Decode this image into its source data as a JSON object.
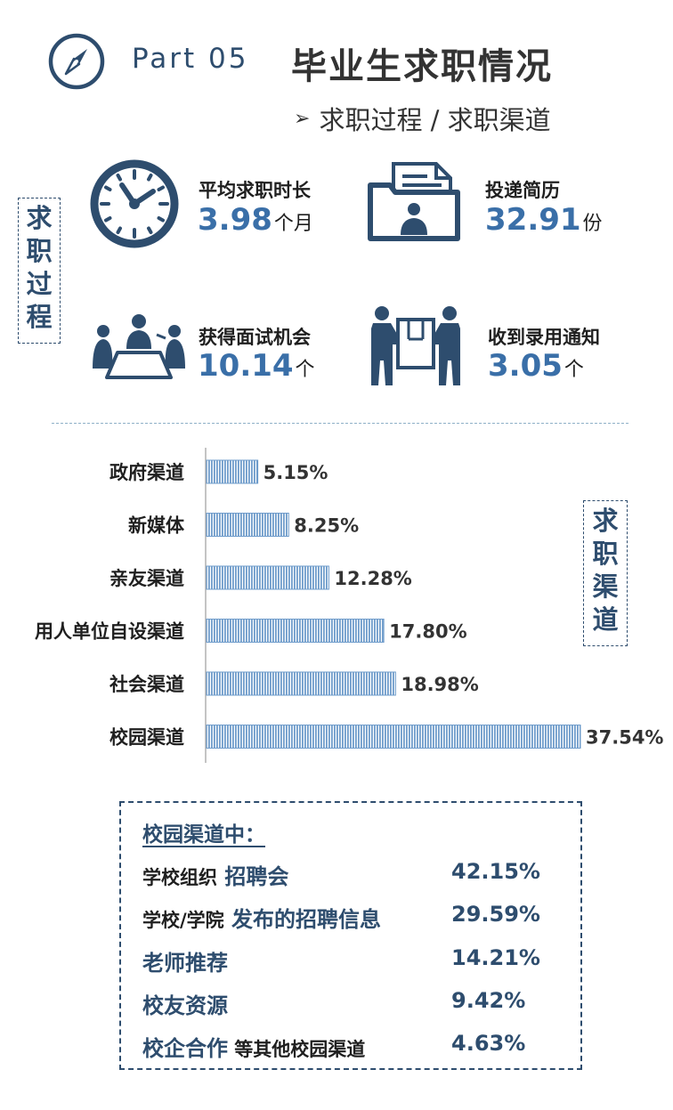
{
  "header": {
    "part": "Part 05",
    "title": "毕业生求职情况",
    "subtitle_arrow": "➢",
    "subtitle": "求职过程 / 求职渠道",
    "icon": "compass-icon"
  },
  "tags": {
    "process": [
      "求",
      "职",
      "过",
      "程"
    ],
    "channel": [
      "求",
      "职",
      "渠",
      "道"
    ]
  },
  "stats": [
    {
      "icon": "clock-icon",
      "label": "平均求职时长",
      "value": "3.98",
      "unit": "个月"
    },
    {
      "icon": "resume-folder-icon",
      "label": "投递简历",
      "value": "32.91",
      "unit": "份"
    },
    {
      "icon": "interview-meeting-icon",
      "label": "获得面试机会",
      "value": "10.14",
      "unit": "个"
    },
    {
      "icon": "offer-box-icon",
      "label": "收到录用通知",
      "value": "3.05",
      "unit": "个"
    }
  ],
  "colors": {
    "navy": "#2e4d6e",
    "accent_blue": "#3a6fa8",
    "bar": "#6f9ccb",
    "divider": "#8fb0c8"
  },
  "chart_data": {
    "type": "bar",
    "orientation": "horizontal",
    "categories": [
      "政府渠道",
      "新媒体",
      "亲友渠道",
      "用人单位自设渠道",
      "社会渠道",
      "校园渠道"
    ],
    "values": [
      5.15,
      8.25,
      12.28,
      17.8,
      18.98,
      37.54
    ],
    "value_labels": [
      "5.15%",
      "8.25%",
      "12.28%",
      "17.80%",
      "18.98%",
      "37.54%"
    ],
    "unit": "%",
    "xlim": [
      0,
      37.54
    ],
    "grid": false,
    "legend": "none"
  },
  "campus": {
    "heading": "校园渠道中：",
    "rows": [
      {
        "parts": [
          {
            "text": "学校组织",
            "style": "dark"
          },
          {
            "text": " 招聘会",
            "style": "hl"
          }
        ],
        "value": "42.15%"
      },
      {
        "parts": [
          {
            "text": "学校/学院",
            "style": "dark"
          },
          {
            "text": " 发布的招聘信息",
            "style": "hl"
          }
        ],
        "value": "29.59%"
      },
      {
        "parts": [
          {
            "text": "老师推荐",
            "style": "hl"
          }
        ],
        "value": "14.21%"
      },
      {
        "parts": [
          {
            "text": "校友资源",
            "style": "hl"
          }
        ],
        "value": "9.42%"
      },
      {
        "parts": [
          {
            "text": "校企合作",
            "style": "hl"
          },
          {
            "text": " 等其他校园渠道",
            "style": "dark"
          }
        ],
        "value": "4.63%"
      }
    ]
  }
}
